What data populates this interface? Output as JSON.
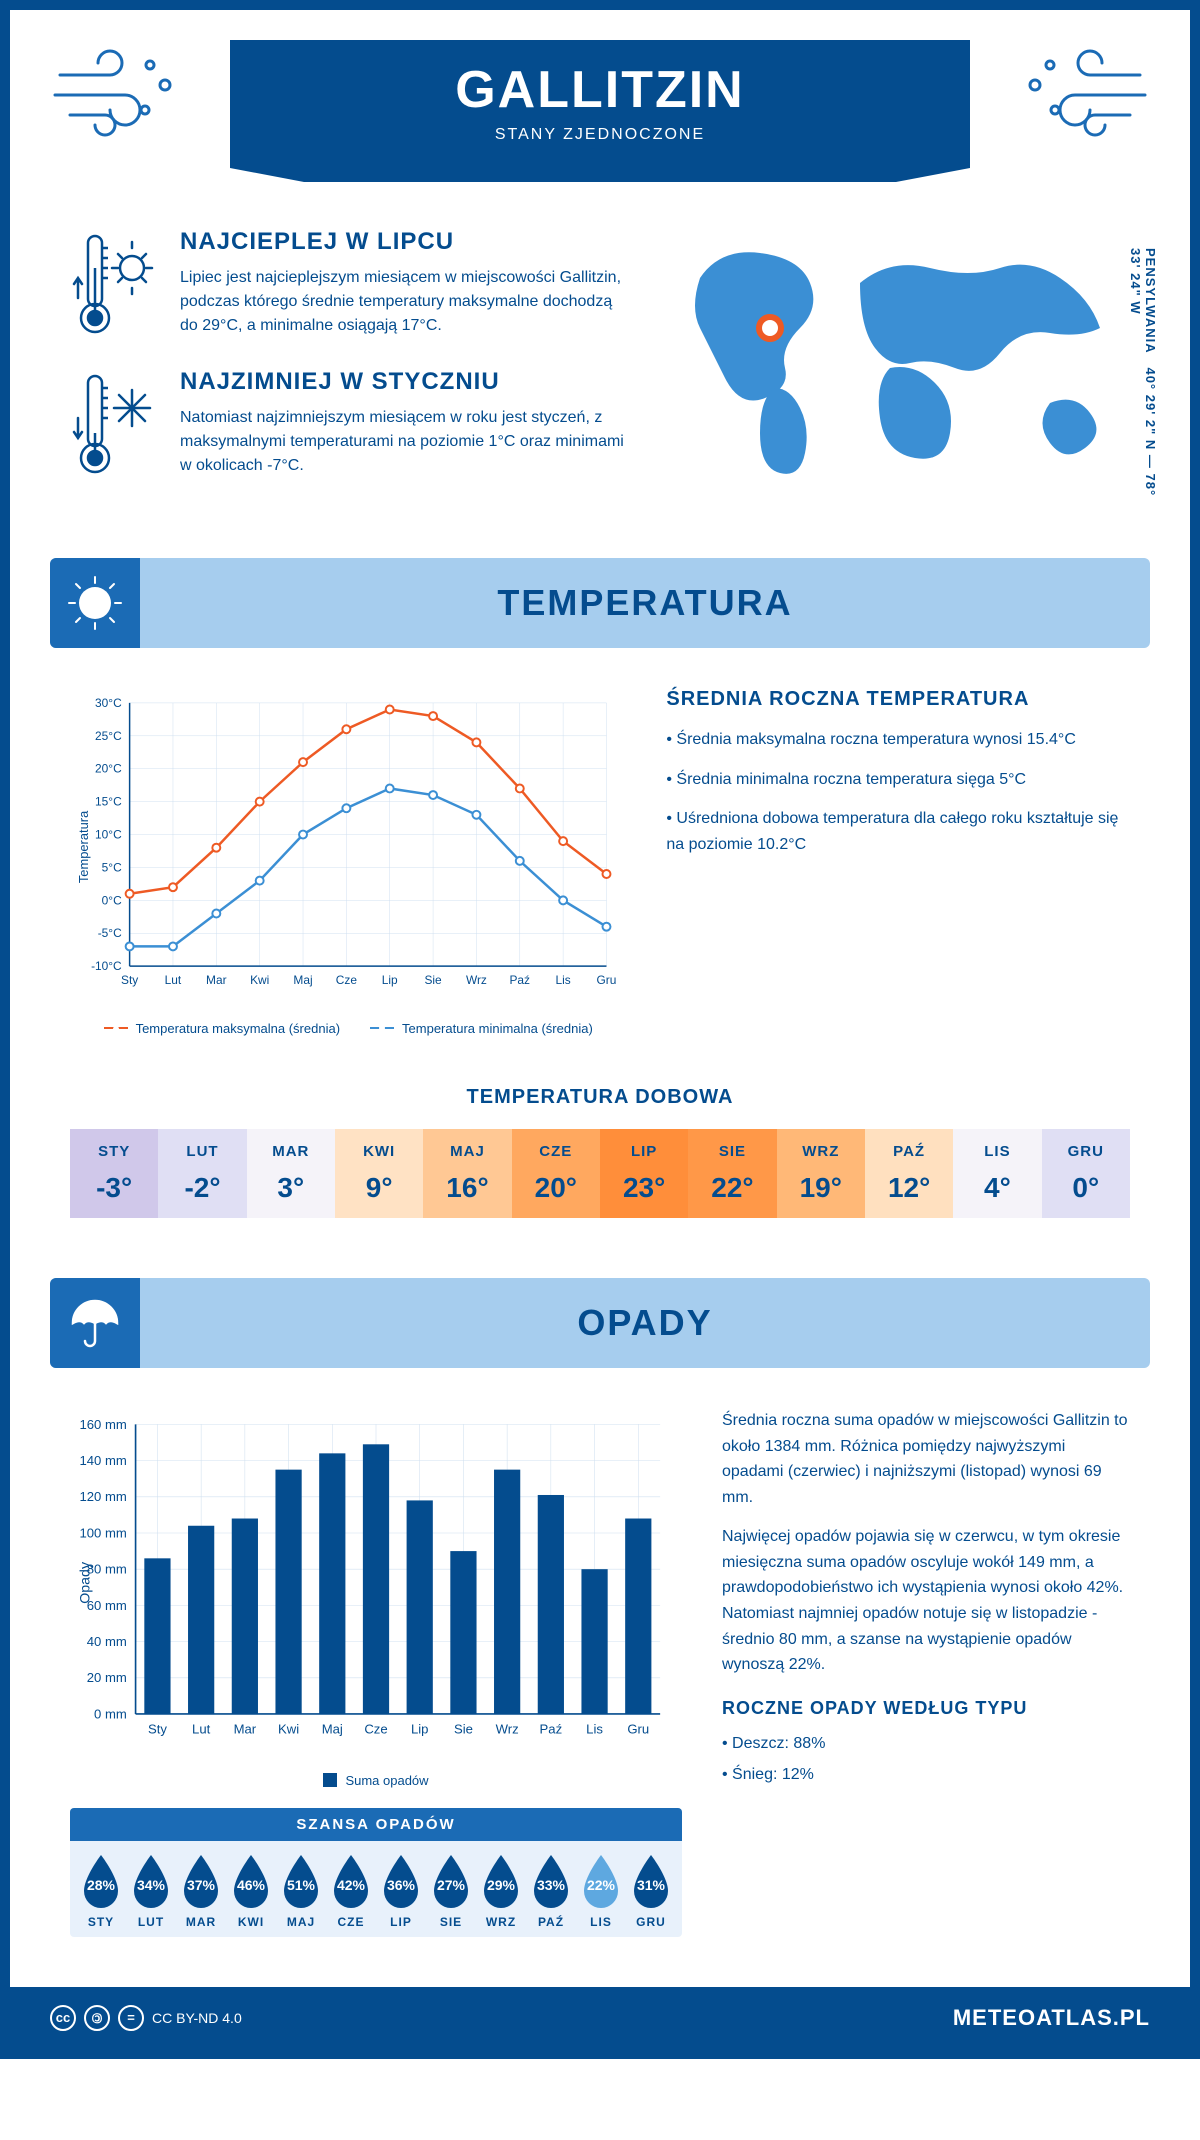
{
  "header": {
    "title": "GALLITZIN",
    "subtitle": "STANY ZJEDNOCZONE"
  },
  "coords": "40° 29' 2\" N — 78° 33' 24\" W",
  "region": "PENSYLWANIA",
  "facts": {
    "hot": {
      "title": "NAJCIEPLEJ W LIPCU",
      "text": "Lipiec jest najcieplejszym miesiącem w miejscowości Gallitzin, podczas którego średnie temperatury maksymalne dochodzą do 29°C, a minimalne osiągają 17°C."
    },
    "cold": {
      "title": "NAJZIMNIEJ W STYCZNIU",
      "text": "Natomiast najzimniejszym miesiącem w roku jest styczeń, z maksymalnymi temperaturami na poziomie 1°C oraz minimami w okolicach -7°C."
    }
  },
  "temp_section": {
    "banner": "TEMPERATURA",
    "side_title": "ŚREDNIA ROCZNA TEMPERATURA",
    "side_p1": "• Średnia maksymalna roczna temperatura wynosi 15.4°C",
    "side_p2": "• Średnia minimalna roczna temperatura sięga 5°C",
    "side_p3": "• Uśredniona dobowa temperatura dla całego roku kształtuje się na poziomie 10.2°C",
    "chart": {
      "type": "line",
      "months": [
        "Sty",
        "Lut",
        "Mar",
        "Kwi",
        "Maj",
        "Cze",
        "Lip",
        "Sie",
        "Wrz",
        "Paź",
        "Lis",
        "Gru"
      ],
      "y_axis_label": "Temperatura",
      "ylim": [
        -10,
        30
      ],
      "ytick_step": 5,
      "y_tick_labels": [
        "-10°C",
        "-5°C",
        "0°C",
        "5°C",
        "10°C",
        "15°C",
        "20°C",
        "25°C",
        "30°C"
      ],
      "series_max": {
        "label": "Temperatura maksymalna (średnia)",
        "color": "#ee5a24",
        "values": [
          1,
          2,
          8,
          15,
          21,
          26,
          29,
          28,
          24,
          17,
          9,
          4
        ]
      },
      "series_min": {
        "label": "Temperatura minimalna (średnia)",
        "color": "#3b8fd4",
        "values": [
          -7,
          -7,
          -2,
          3,
          10,
          14,
          17,
          16,
          13,
          6,
          0,
          -4
        ]
      },
      "grid_color": "#d0e0f0",
      "axis_color": "#044c8e"
    }
  },
  "daily_temp": {
    "title": "TEMPERATURA DOBOWA",
    "months": [
      "STY",
      "LUT",
      "MAR",
      "KWI",
      "MAJ",
      "CZE",
      "LIP",
      "SIE",
      "WRZ",
      "PAŹ",
      "LIS",
      "GRU"
    ],
    "values": [
      "-3°",
      "-2°",
      "3°",
      "9°",
      "16°",
      "20°",
      "23°",
      "22°",
      "19°",
      "12°",
      "4°",
      "0°"
    ],
    "colors": [
      "#d0c8ea",
      "#e0dff4",
      "#f5f3f9",
      "#ffe2c4",
      "#ffc894",
      "#ffa85f",
      "#ff8e3a",
      "#ff9848",
      "#ffb877",
      "#ffe0bf",
      "#f5f3f9",
      "#e0dff4"
    ]
  },
  "precip_section": {
    "banner": "OPADY",
    "side_p1": "Średnia roczna suma opadów w miejscowości Gallitzin to około 1384 mm. Różnica pomiędzy najwyższymi opadami (czerwiec) i najniższymi (listopad) wynosi 69 mm.",
    "side_p2": "Najwięcej opadów pojawia się w czerwcu, w tym okresie miesięczna suma opadów oscyluje wokół 149 mm, a prawdopodobieństwo ich wystąpienia wynosi około 42%. Natomiast najmniej opadów notuje się w listopadzie - średnio 80 mm, a szanse na wystąpienie opadów wynoszą 22%.",
    "chart": {
      "type": "bar",
      "y_axis_label": "Opady",
      "months": [
        "Sty",
        "Lut",
        "Mar",
        "Kwi",
        "Maj",
        "Cze",
        "Lip",
        "Sie",
        "Wrz",
        "Paź",
        "Lis",
        "Gru"
      ],
      "values": [
        86,
        104,
        108,
        135,
        144,
        149,
        118,
        90,
        135,
        121,
        80,
        108
      ],
      "bar_color": "#044c8e",
      "ylim": [
        0,
        160
      ],
      "ytick_step": 20,
      "y_tick_labels": [
        "0 mm",
        "20 mm",
        "40 mm",
        "60 mm",
        "80 mm",
        "100 mm",
        "120 mm",
        "140 mm",
        "160 mm"
      ],
      "legend": "Suma opadów",
      "grid_color": "#d0e0f0"
    },
    "chance": {
      "title": "SZANSA OPADÓW",
      "months": [
        "STY",
        "LUT",
        "MAR",
        "KWI",
        "MAJ",
        "CZE",
        "LIP",
        "SIE",
        "WRZ",
        "PAŹ",
        "LIS",
        "GRU"
      ],
      "values": [
        "28%",
        "34%",
        "37%",
        "46%",
        "51%",
        "42%",
        "36%",
        "27%",
        "29%",
        "33%",
        "22%",
        "31%"
      ],
      "drop_color": "#044c8e",
      "min_drop_color": "#5ea8e0",
      "min_index": 10
    },
    "type_title": "ROCZNE OPADY WEDŁUG TYPU",
    "type_rain": "• Deszcz: 88%",
    "type_snow": "• Śnieg: 12%"
  },
  "footer": {
    "license": "CC BY-ND 4.0",
    "brand": "METEOATLAS.PL"
  }
}
